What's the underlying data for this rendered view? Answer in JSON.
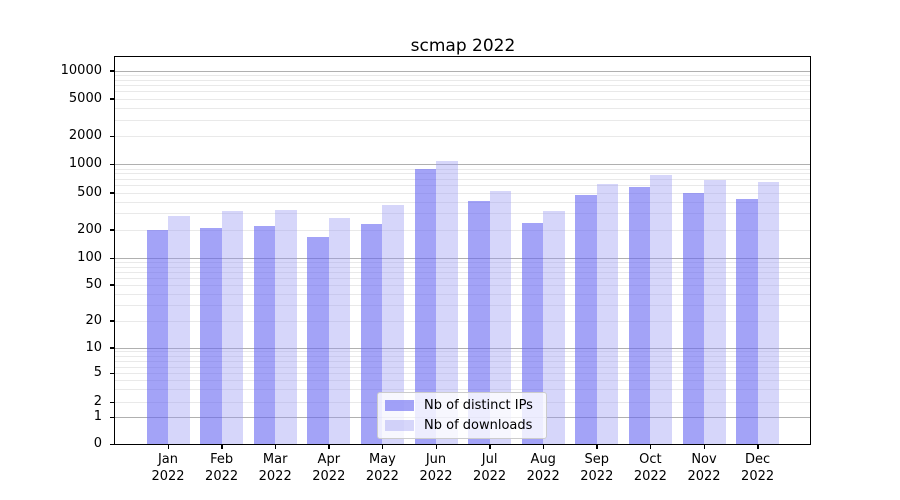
{
  "title": "scmap 2022",
  "chart_data": {
    "type": "bar",
    "title": "scmap 2022",
    "categories": [
      "Jan 2022",
      "Feb 2022",
      "Mar 2022",
      "Apr 2022",
      "May 2022",
      "Jun 2022",
      "Jul 2022",
      "Aug 2022",
      "Sep 2022",
      "Oct 2022",
      "Nov 2022",
      "Dec 2022"
    ],
    "series": [
      {
        "name": "Nb of distinct IPs",
        "color": "rgba(102,102,242,0.6)",
        "values": [
          197,
          210,
          218,
          166,
          228,
          900,
          410,
          235,
          470,
          570,
          495,
          428
        ]
      },
      {
        "name": "Nb of downloads",
        "color": "rgba(153,153,242,0.4)",
        "values": [
          280,
          315,
          325,
          265,
          365,
          1080,
          520,
          320,
          615,
          770,
          680,
          645
        ]
      }
    ],
    "xlabel": "",
    "ylabel": "",
    "yscale": "symlog",
    "yticks": [
      0,
      1,
      2,
      5,
      10,
      20,
      50,
      100,
      200,
      500,
      1000,
      2000,
      5000,
      10000
    ],
    "ylim": [
      0,
      14000
    ],
    "grid": true,
    "legend_position": "lower center",
    "major_grid_color": "#b0b0b0",
    "minor_grid_color": "#e9e9e9",
    "spine_color": "#000000"
  }
}
